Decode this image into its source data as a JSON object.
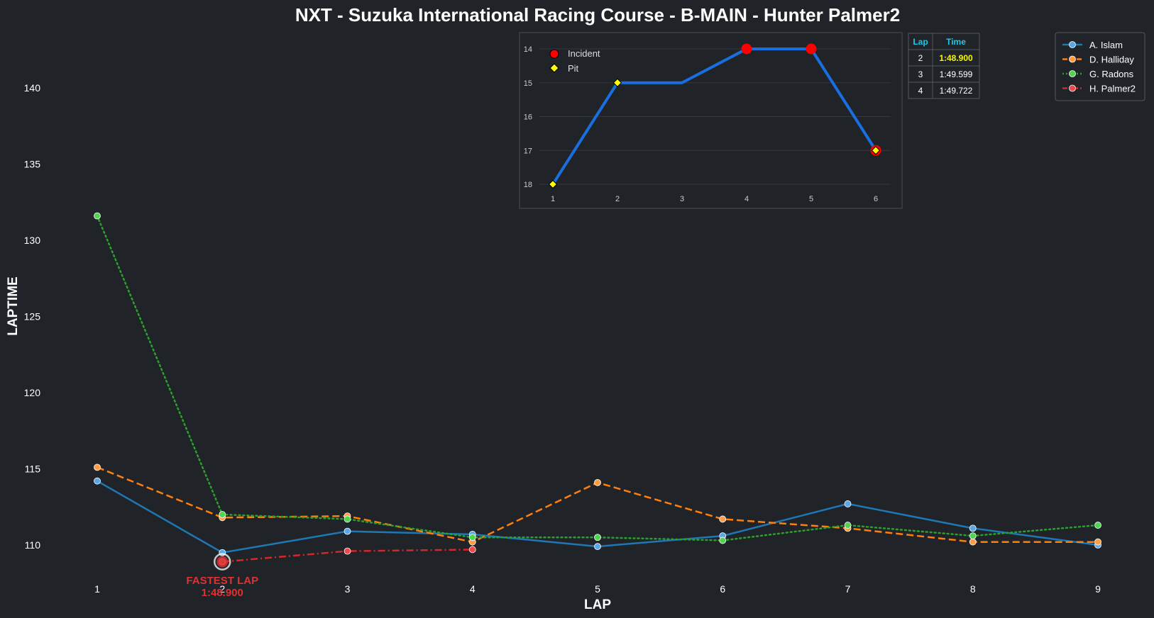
{
  "title": "NXT - Suzuka International Racing Course - B-MAIN - Hunter Palmer2",
  "colors": {
    "background": "#202328",
    "islam": "#1f77b4",
    "halliday": "#ff7f0e",
    "radons": "#2ca02c",
    "palmer": "#d62728",
    "inset_line": "#1a6fe0",
    "incident": "#ff0000",
    "pit": "#ffff00",
    "fastest": "#e03131"
  },
  "chart_data": [
    {
      "type": "line",
      "title": "NXT - Suzuka International Racing Course - B-MAIN - Hunter Palmer2",
      "xlabel": "LAP",
      "ylabel": "LAPTIME",
      "x": [
        1,
        2,
        3,
        4,
        5,
        6,
        7,
        8,
        9
      ],
      "xticks": [
        "1",
        "2",
        "3",
        "4",
        "5",
        "6",
        "7",
        "8",
        "9"
      ],
      "yticks": [
        "110",
        "115",
        "120",
        "125",
        "130",
        "135",
        "140"
      ],
      "ylim": [
        108,
        144
      ],
      "legend": "top-right",
      "grid": false,
      "series": [
        {
          "name": "A. Islam",
          "style": "solid",
          "color_key": "islam",
          "x": [
            1,
            2,
            3,
            4,
            5,
            6,
            7,
            8,
            9
          ],
          "values": [
            114.2,
            109.5,
            110.9,
            110.7,
            109.9,
            110.6,
            112.7,
            111.1,
            110.0
          ]
        },
        {
          "name": "D. Halliday",
          "style": "dashed",
          "color_key": "halliday",
          "x": [
            1,
            2,
            3,
            4,
            5,
            6,
            7,
            8,
            9
          ],
          "values": [
            115.1,
            111.8,
            111.9,
            110.2,
            114.1,
            111.7,
            111.1,
            110.2,
            110.2
          ]
        },
        {
          "name": "G. Radons",
          "style": "dotted",
          "color_key": "radons",
          "x": [
            1,
            2,
            3,
            4,
            5,
            6,
            7,
            8,
            9
          ],
          "values": [
            131.6,
            112.0,
            111.7,
            110.5,
            110.5,
            110.3,
            111.3,
            110.6,
            111.3
          ]
        },
        {
          "name": "H. Palmer2",
          "style": "dashdot",
          "color_key": "palmer",
          "x": [
            2,
            3,
            4
          ],
          "values": [
            108.9,
            109.6,
            109.7
          ]
        }
      ],
      "annotations": [
        {
          "type": "fastest-lap",
          "x": 2,
          "y": 108.9,
          "line1": "FASTEST LAP",
          "line2": "1:48.900"
        }
      ]
    },
    {
      "type": "line",
      "title": "",
      "x": [
        1,
        2,
        3,
        4,
        5,
        6
      ],
      "values": [
        18,
        15,
        15,
        14,
        14,
        17
      ],
      "xticks": [
        "1",
        "2",
        "3",
        "4",
        "5",
        "6"
      ],
      "yticks": [
        "14",
        "15",
        "16",
        "17",
        "18"
      ],
      "ylim": [
        13.7,
        18.3
      ],
      "y_inverted": true,
      "legend": "top-left",
      "legend_entries": [
        "Incident",
        "Pit"
      ],
      "incidents": [
        4,
        5,
        6
      ],
      "pits": [
        1,
        2,
        6
      ]
    }
  ],
  "lap_table": {
    "headers": [
      "Lap",
      "Time"
    ],
    "rows": [
      {
        "lap": "2",
        "time": "1:48.900",
        "best": true
      },
      {
        "lap": "3",
        "time": "1:49.599",
        "best": false
      },
      {
        "lap": "4",
        "time": "1:49.722",
        "best": false
      }
    ]
  }
}
